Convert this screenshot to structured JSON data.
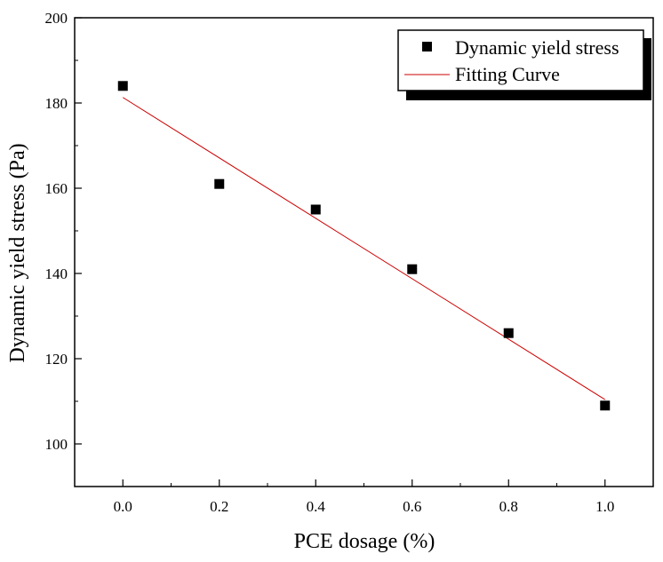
{
  "chart_data": {
    "type": "scatter",
    "xlabel": "PCE dosage (%)",
    "ylabel": "Dynamic yield stress (Pa)",
    "xlim": [
      -0.1,
      1.1
    ],
    "ylim": [
      90,
      200
    ],
    "x_ticks": [
      "0.0",
      "0.2",
      "0.4",
      "0.6",
      "0.8",
      "1.0"
    ],
    "y_ticks": [
      "100",
      "120",
      "140",
      "160",
      "180",
      "200"
    ],
    "x_tick_values": [
      0.0,
      0.2,
      0.4,
      0.6,
      0.8,
      1.0
    ],
    "y_tick_values": [
      100,
      120,
      140,
      160,
      180,
      200
    ],
    "x_minor_tick_values": [
      -0.1,
      0.1,
      0.3,
      0.5,
      0.7,
      0.9,
      1.1
    ],
    "y_minor_tick_values": [
      90,
      110,
      130,
      150,
      170,
      190
    ],
    "grid": false,
    "legend_position": "top-right",
    "series": [
      {
        "name": "Dynamic yield stress",
        "kind": "scatter",
        "marker": "square",
        "color": "#000000",
        "x": [
          0.0,
          0.2,
          0.4,
          0.6,
          0.8,
          1.0
        ],
        "y": [
          184,
          161,
          155,
          141,
          126,
          109
        ]
      },
      {
        "name": "Fitting Curve",
        "kind": "line",
        "color": "#cc0000",
        "x": [
          0.0,
          1.0
        ],
        "y": [
          181.3,
          110.4
        ]
      }
    ]
  }
}
